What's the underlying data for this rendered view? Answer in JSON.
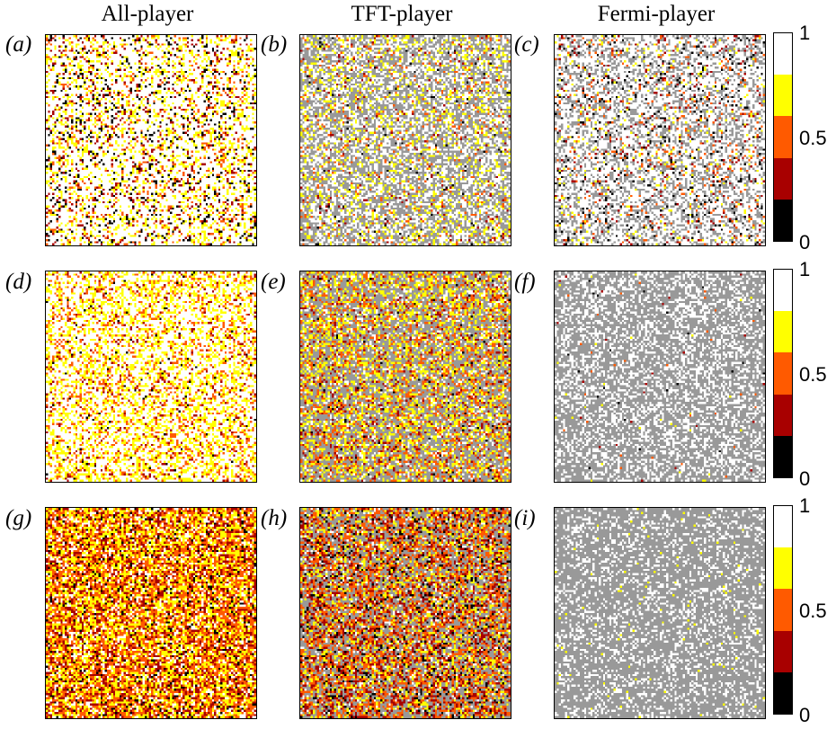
{
  "chart_data": {
    "type": "heatmap",
    "column_titles": [
      "All-player",
      "TFT-player",
      "Fermi-player"
    ],
    "panel_labels": [
      "(a)",
      "(b)",
      "(c)",
      "(d)",
      "(e)",
      "(f)",
      "(g)",
      "(h)",
      "(i)"
    ],
    "grid_size": 100,
    "colorbar": {
      "ticks": [
        "0",
        "0.5",
        "1"
      ],
      "range": [
        0,
        1
      ],
      "bins": [
        {
          "from": 0.0,
          "to": 0.2,
          "color": "#000000"
        },
        {
          "from": 0.2,
          "to": 0.4,
          "color": "#a80000"
        },
        {
          "from": 0.4,
          "to": 0.6,
          "color": "#ff5a00"
        },
        {
          "from": 0.6,
          "to": 0.8,
          "color": "#ffff00"
        },
        {
          "from": 0.8,
          "to": 1.0,
          "color": "#ffffff"
        }
      ]
    },
    "empty_site_color": "#999999",
    "panels": [
      {
        "label": "(a)",
        "player": "All-player",
        "bin_fractions": [
          0.06,
          0.06,
          0.06,
          0.17,
          0.65
        ],
        "empty_fraction": 0.0
      },
      {
        "label": "(b)",
        "player": "TFT-player",
        "bin_fractions": [
          0.01,
          0.02,
          0.04,
          0.13,
          0.35
        ],
        "empty_fraction": 0.45
      },
      {
        "label": "(c)",
        "player": "Fermi-player",
        "bin_fractions": [
          0.04,
          0.03,
          0.04,
          0.03,
          0.56
        ],
        "empty_fraction": 0.3
      },
      {
        "label": "(d)",
        "player": "All-player",
        "bin_fractions": [
          0.01,
          0.04,
          0.12,
          0.28,
          0.55
        ],
        "empty_fraction": 0.0
      },
      {
        "label": "(e)",
        "player": "TFT-player",
        "bin_fractions": [
          0.01,
          0.06,
          0.15,
          0.23,
          0.1
        ],
        "empty_fraction": 0.45
      },
      {
        "label": "(f)",
        "player": "Fermi-player",
        "bin_fractions": [
          0.002,
          0.002,
          0.003,
          0.003,
          0.35
        ],
        "empty_fraction": 0.64
      },
      {
        "label": "(g)",
        "player": "All-player",
        "bin_fractions": [
          0.05,
          0.2,
          0.3,
          0.3,
          0.15
        ],
        "empty_fraction": 0.0
      },
      {
        "label": "(h)",
        "player": "TFT-player",
        "bin_fractions": [
          0.06,
          0.17,
          0.22,
          0.15,
          0.05
        ],
        "empty_fraction": 0.35
      },
      {
        "label": "(i)",
        "player": "Fermi-player",
        "bin_fractions": [
          0.0,
          0.0,
          0.0,
          0.01,
          0.24
        ],
        "empty_fraction": 0.75
      }
    ]
  }
}
